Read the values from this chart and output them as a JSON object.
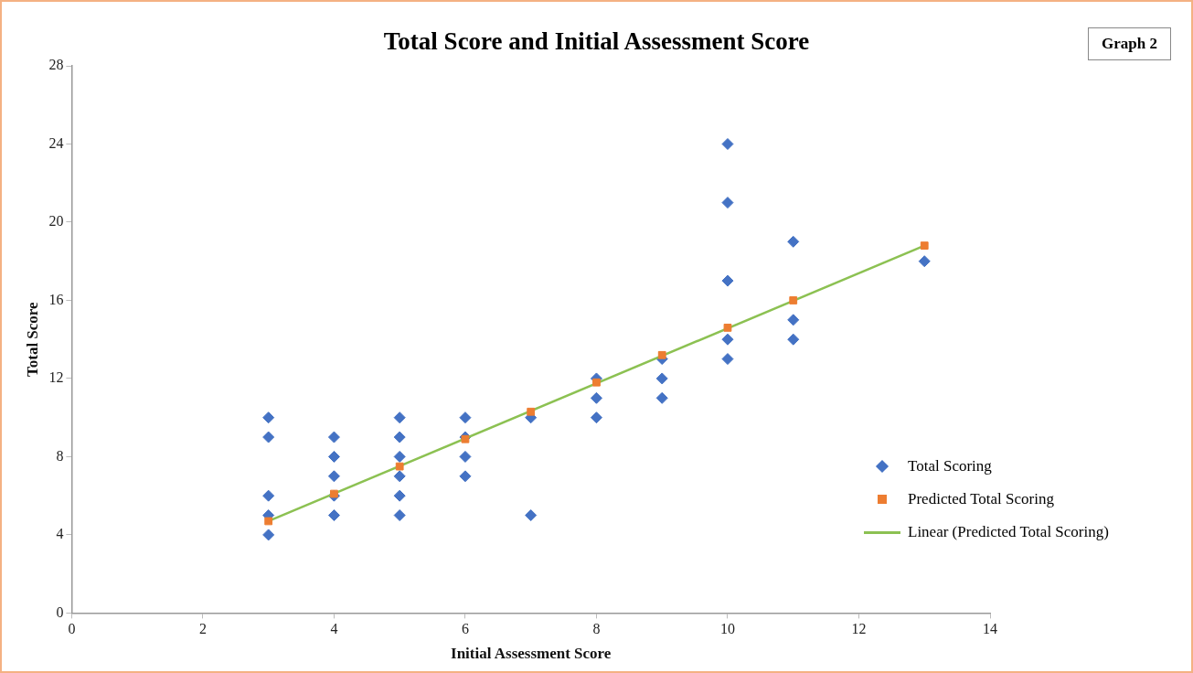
{
  "chart_data": {
    "type": "scatter",
    "title": "Total Score and Initial Assessment Score",
    "xlabel": "Initial Assessment Score",
    "ylabel": "Total Score",
    "annotations": [
      "Graph 2"
    ],
    "xlim": [
      0,
      14
    ],
    "xticks": [
      0,
      2,
      4,
      6,
      8,
      10,
      12,
      14
    ],
    "ylim": [
      0,
      28
    ],
    "yticks": [
      0,
      4,
      8,
      12,
      16,
      20,
      24,
      28
    ],
    "grid": false,
    "legend": "bottom right",
    "series": [
      {
        "name": "Total Scoring",
        "type": "scatter",
        "marker": "diamond",
        "color": "#4472c4",
        "x": [
          3,
          3,
          3,
          3,
          3,
          4,
          4,
          4,
          4,
          4,
          5,
          5,
          5,
          5,
          5,
          5,
          6,
          6,
          6,
          6,
          7,
          7,
          8,
          8,
          8,
          9,
          9,
          9,
          10,
          10,
          10,
          10,
          10,
          11,
          11,
          11,
          13
        ],
        "values": [
          10,
          9,
          6,
          5,
          4,
          9,
          8,
          7,
          6,
          5,
          10,
          9,
          8,
          7,
          6,
          5,
          10,
          9,
          8,
          7,
          10,
          5,
          12,
          11,
          10,
          13,
          12,
          11,
          24,
          21,
          17,
          14,
          13,
          19,
          15,
          14,
          18
        ]
      },
      {
        "name": "Predicted Total Scoring",
        "type": "scatter",
        "marker": "square",
        "color": "#ed7d31",
        "x": [
          3,
          4,
          5,
          6,
          7,
          8,
          9,
          10,
          11,
          13
        ],
        "values": [
          4.7,
          6.1,
          7.5,
          8.9,
          10.3,
          11.8,
          13.2,
          14.6,
          16.0,
          18.8
        ]
      },
      {
        "name": "Linear (Predicted Total Scoring)",
        "type": "line",
        "marker": "none",
        "line_style": "solid",
        "color": "#8cc152",
        "x": [
          3,
          13
        ],
        "values": [
          4.7,
          18.8
        ]
      }
    ]
  }
}
